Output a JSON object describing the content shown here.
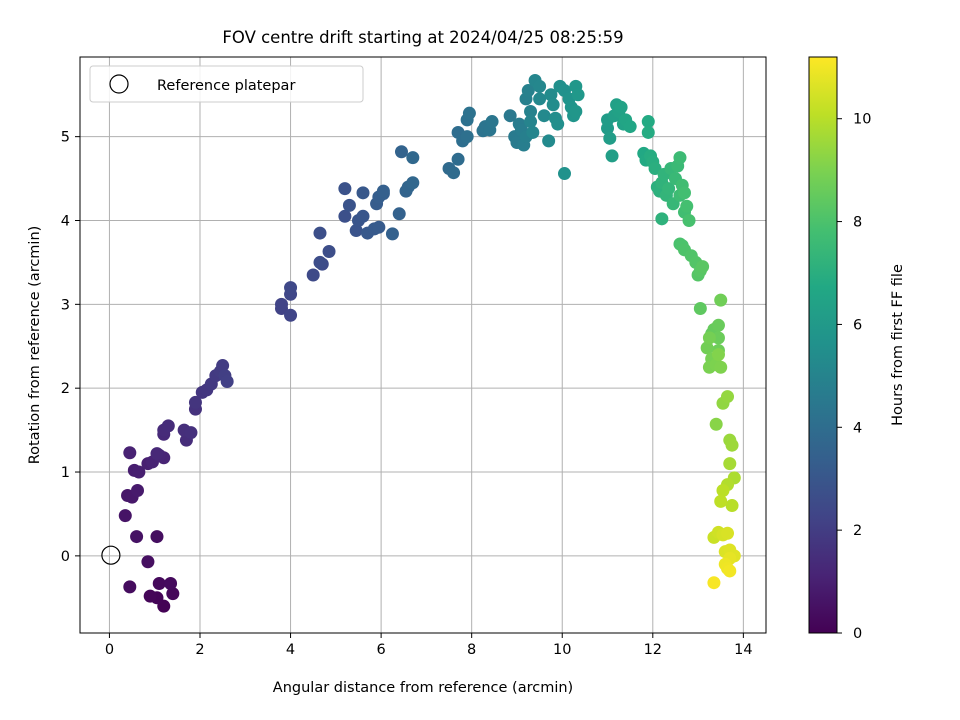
{
  "chart_data": {
    "type": "scatter",
    "title": "FOV centre drift starting at 2024/04/25 08:25:59",
    "xlabel": "Angular distance from reference (arcmin)",
    "ylabel": "Rotation from reference (arcmin)",
    "xlim": [
      -0.65,
      14.5
    ],
    "ylim": [
      -0.92,
      5.95
    ],
    "xticks": [
      0,
      2,
      4,
      6,
      8,
      10,
      12,
      14
    ],
    "yticks": [
      0,
      1,
      2,
      3,
      4,
      5
    ],
    "grid": true,
    "legend": {
      "position": "upper-left",
      "entries": [
        "Reference platepar"
      ]
    },
    "reference_point": {
      "x": 0,
      "y": 0,
      "label": "Reference platepar"
    },
    "colorbar": {
      "label": "Hours from first FF file",
      "min": 0,
      "max": 11.2,
      "ticks": [
        0,
        2,
        4,
        6,
        8,
        10
      ],
      "colormap": "viridis"
    },
    "series": [
      {
        "points": [
          [
            1.2,
            -0.6,
            0.05
          ],
          [
            1.05,
            -0.5,
            0.1
          ],
          [
            0.9,
            -0.48,
            0.15
          ],
          [
            1.4,
            -0.45,
            0.2
          ],
          [
            1.1,
            -0.33,
            0.25
          ],
          [
            1.35,
            -0.33,
            0.3
          ],
          [
            0.45,
            -0.37,
            0.35
          ],
          [
            1.05,
            0.23,
            0.4
          ],
          [
            0.85,
            -0.07,
            0.45
          ],
          [
            0.6,
            0.23,
            0.55
          ],
          [
            0.35,
            0.48,
            0.6
          ],
          [
            0.4,
            0.72,
            0.7
          ],
          [
            0.5,
            0.7,
            0.75
          ],
          [
            0.62,
            0.78,
            0.8
          ],
          [
            0.55,
            1.02,
            0.9
          ],
          [
            0.65,
            1.0,
            0.95
          ],
          [
            0.85,
            1.1,
            1.0
          ],
          [
            0.45,
            1.23,
            1.05
          ],
          [
            0.95,
            1.12,
            1.1
          ],
          [
            1.2,
            1.17,
            1.15
          ],
          [
            1.1,
            1.2,
            1.2
          ],
          [
            1.05,
            1.22,
            1.25
          ],
          [
            1.2,
            1.45,
            1.3
          ],
          [
            1.2,
            1.5,
            1.35
          ],
          [
            1.3,
            1.55,
            1.4
          ],
          [
            1.7,
            1.38,
            1.45
          ],
          [
            1.65,
            1.5,
            1.5
          ],
          [
            1.8,
            1.47,
            1.55
          ],
          [
            1.9,
            1.75,
            1.6
          ],
          [
            1.9,
            1.83,
            1.7
          ],
          [
            2.05,
            1.95,
            1.75
          ],
          [
            2.15,
            1.98,
            1.8
          ],
          [
            2.25,
            2.05,
            1.85
          ],
          [
            2.35,
            2.15,
            1.9
          ],
          [
            2.45,
            2.2,
            1.95
          ],
          [
            2.5,
            2.27,
            2.0
          ],
          [
            2.55,
            2.15,
            2.05
          ],
          [
            2.6,
            2.08,
            2.1
          ],
          [
            3.8,
            2.95,
            2.2
          ],
          [
            3.8,
            3.0,
            2.25
          ],
          [
            4.0,
            2.87,
            2.3
          ],
          [
            4.0,
            3.12,
            2.35
          ],
          [
            4.0,
            3.2,
            2.4
          ],
          [
            4.5,
            3.35,
            2.5
          ],
          [
            4.7,
            3.48,
            2.55
          ],
          [
            4.65,
            3.5,
            2.6
          ],
          [
            4.85,
            3.63,
            2.65
          ],
          [
            4.65,
            3.85,
            2.7
          ],
          [
            5.2,
            4.05,
            2.75
          ],
          [
            5.2,
            4.38,
            2.8
          ],
          [
            5.3,
            4.18,
            2.85
          ],
          [
            5.45,
            3.88,
            2.9
          ],
          [
            5.5,
            4.0,
            2.95
          ],
          [
            5.6,
            4.05,
            3.0
          ],
          [
            5.6,
            4.33,
            3.05
          ],
          [
            5.7,
            3.85,
            3.1
          ],
          [
            5.85,
            3.9,
            3.15
          ],
          [
            5.95,
            3.92,
            3.2
          ],
          [
            5.9,
            4.2,
            3.25
          ],
          [
            5.95,
            4.28,
            3.3
          ],
          [
            6.05,
            4.32,
            3.35
          ],
          [
            6.05,
            4.35,
            3.4
          ],
          [
            6.25,
            3.84,
            3.45
          ],
          [
            6.4,
            4.08,
            3.5
          ],
          [
            6.45,
            4.82,
            3.55
          ],
          [
            6.55,
            4.35,
            3.6
          ],
          [
            6.6,
            4.4,
            3.65
          ],
          [
            6.7,
            4.45,
            3.7
          ],
          [
            6.7,
            4.75,
            3.75
          ],
          [
            7.5,
            4.62,
            3.85
          ],
          [
            7.6,
            4.57,
            3.9
          ],
          [
            7.7,
            4.73,
            3.95
          ],
          [
            7.7,
            5.05,
            4.0
          ],
          [
            7.8,
            4.95,
            4.05
          ],
          [
            7.9,
            5.0,
            4.1
          ],
          [
            7.9,
            5.2,
            4.15
          ],
          [
            7.95,
            5.28,
            4.2
          ],
          [
            8.25,
            5.07,
            4.25
          ],
          [
            8.3,
            5.12,
            4.3
          ],
          [
            8.4,
            5.08,
            4.35
          ],
          [
            8.45,
            5.18,
            4.4
          ],
          [
            8.85,
            5.25,
            4.5
          ],
          [
            8.95,
            5.0,
            4.55
          ],
          [
            9.0,
            4.93,
            4.6
          ],
          [
            9.05,
            5.15,
            4.65
          ],
          [
            9.1,
            5.08,
            4.7
          ],
          [
            9.15,
            4.9,
            4.75
          ],
          [
            9.2,
            5.0,
            4.8
          ],
          [
            9.2,
            5.45,
            4.85
          ],
          [
            9.25,
            5.55,
            4.9
          ],
          [
            9.3,
            5.3,
            4.95
          ],
          [
            9.3,
            5.18,
            5.0
          ],
          [
            9.35,
            5.05,
            5.05
          ],
          [
            9.4,
            5.67,
            5.1
          ],
          [
            9.5,
            5.6,
            5.15
          ],
          [
            9.5,
            5.45,
            5.2
          ],
          [
            9.6,
            5.25,
            5.25
          ],
          [
            9.7,
            4.95,
            5.3
          ],
          [
            9.75,
            5.5,
            5.35
          ],
          [
            9.8,
            5.38,
            5.4
          ],
          [
            9.85,
            5.22,
            5.45
          ],
          [
            9.9,
            5.15,
            5.5
          ],
          [
            9.95,
            5.6,
            5.55
          ],
          [
            10.05,
            5.55,
            5.6
          ],
          [
            10.05,
            4.56,
            5.65
          ],
          [
            10.15,
            5.45,
            5.7
          ],
          [
            10.2,
            5.35,
            5.75
          ],
          [
            10.25,
            5.25,
            5.8
          ],
          [
            10.3,
            5.3,
            5.85
          ],
          [
            10.3,
            5.6,
            5.9
          ],
          [
            10.35,
            5.5,
            5.95
          ],
          [
            11.0,
            5.1,
            6.1
          ],
          [
            11.0,
            5.2,
            6.15
          ],
          [
            11.05,
            4.98,
            6.2
          ],
          [
            11.1,
            4.77,
            6.25
          ],
          [
            11.15,
            5.25,
            6.3
          ],
          [
            11.2,
            5.38,
            6.35
          ],
          [
            11.25,
            5.3,
            6.4
          ],
          [
            11.3,
            5.35,
            6.45
          ],
          [
            11.35,
            5.15,
            6.5
          ],
          [
            11.4,
            5.2,
            6.55
          ],
          [
            11.5,
            5.12,
            6.6
          ],
          [
            11.8,
            4.8,
            6.7
          ],
          [
            11.85,
            4.72,
            6.75
          ],
          [
            11.9,
            5.18,
            6.8
          ],
          [
            11.9,
            5.05,
            6.85
          ],
          [
            11.95,
            4.77,
            6.9
          ],
          [
            12.0,
            4.7,
            6.95
          ],
          [
            12.05,
            4.62,
            7.0
          ],
          [
            12.1,
            4.4,
            7.05
          ],
          [
            12.15,
            4.35,
            7.1
          ],
          [
            12.2,
            4.02,
            7.15
          ],
          [
            12.2,
            4.45,
            7.2
          ],
          [
            12.25,
            4.55,
            7.25
          ],
          [
            12.3,
            4.3,
            7.3
          ],
          [
            12.35,
            4.38,
            7.35
          ],
          [
            12.4,
            4.62,
            7.4
          ],
          [
            12.45,
            4.2,
            7.45
          ],
          [
            12.5,
            4.5,
            7.5
          ],
          [
            12.55,
            4.65,
            7.55
          ],
          [
            12.6,
            4.75,
            7.6
          ],
          [
            12.6,
            4.3,
            7.65
          ],
          [
            12.65,
            4.42,
            7.7
          ],
          [
            12.7,
            4.1,
            7.75
          ],
          [
            12.7,
            4.33,
            7.8
          ],
          [
            12.75,
            4.17,
            7.85
          ],
          [
            12.8,
            4.0,
            7.9
          ],
          [
            12.6,
            3.72,
            7.95
          ],
          [
            12.65,
            3.7,
            8.0
          ],
          [
            12.7,
            3.65,
            8.05
          ],
          [
            12.85,
            3.58,
            8.1
          ],
          [
            12.95,
            3.5,
            8.15
          ],
          [
            13.0,
            3.35,
            8.2
          ],
          [
            13.05,
            3.4,
            8.25
          ],
          [
            13.1,
            3.45,
            8.3
          ],
          [
            13.05,
            2.95,
            8.4
          ],
          [
            13.3,
            2.65,
            8.5
          ],
          [
            13.35,
            2.7,
            8.55
          ],
          [
            13.45,
            2.75,
            8.6
          ],
          [
            13.45,
            2.6,
            8.65
          ],
          [
            13.45,
            2.45,
            8.7
          ],
          [
            13.5,
            3.05,
            8.75
          ],
          [
            13.2,
            2.48,
            8.8
          ],
          [
            13.25,
            2.6,
            8.85
          ],
          [
            13.3,
            2.35,
            8.9
          ],
          [
            13.25,
            2.25,
            8.95
          ],
          [
            13.4,
            2.28,
            9.0
          ],
          [
            13.5,
            2.25,
            9.05
          ],
          [
            13.45,
            2.4,
            9.1
          ],
          [
            13.4,
            1.57,
            9.2
          ],
          [
            13.55,
            1.82,
            9.35
          ],
          [
            13.65,
            1.9,
            9.4
          ],
          [
            13.7,
            1.38,
            9.5
          ],
          [
            13.75,
            1.32,
            9.55
          ],
          [
            13.7,
            1.1,
            9.7
          ],
          [
            13.8,
            0.93,
            9.8
          ],
          [
            13.65,
            0.85,
            9.9
          ],
          [
            13.75,
            0.6,
            10.0
          ],
          [
            13.55,
            0.78,
            10.05
          ],
          [
            13.5,
            0.65,
            10.1
          ],
          [
            13.35,
            0.22,
            10.3
          ],
          [
            13.45,
            0.28,
            10.4
          ],
          [
            13.55,
            0.25,
            10.5
          ],
          [
            13.65,
            0.27,
            10.55
          ],
          [
            13.6,
            0.05,
            10.6
          ],
          [
            13.7,
            0.07,
            10.65
          ],
          [
            13.8,
            0.0,
            10.7
          ],
          [
            13.7,
            -0.03,
            10.8
          ],
          [
            13.6,
            -0.1,
            10.9
          ],
          [
            13.65,
            -0.15,
            10.95
          ],
          [
            13.7,
            -0.18,
            11.0
          ],
          [
            13.35,
            -0.32,
            11.1
          ]
        ]
      }
    ]
  }
}
